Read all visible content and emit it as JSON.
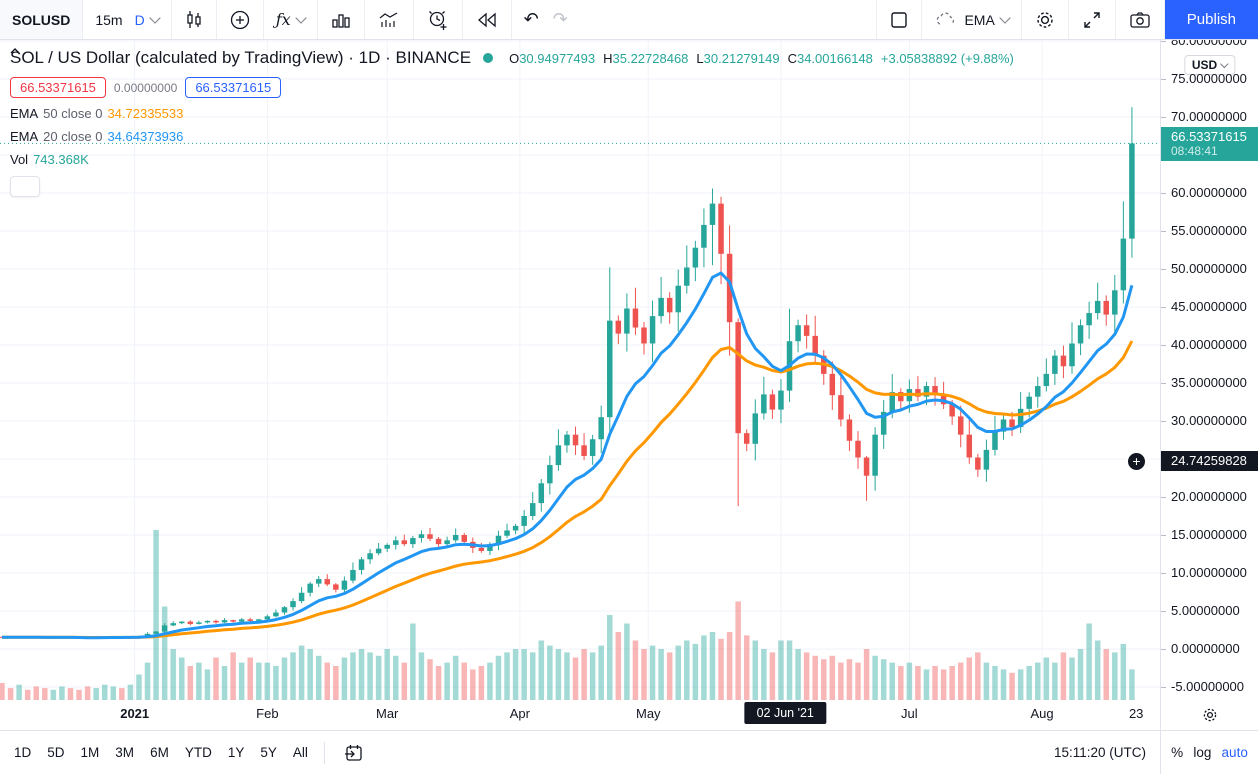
{
  "header": {
    "symbol": "SOLUSD",
    "interval": "15m",
    "timeframe": "D",
    "indicator_template_label": "EMA",
    "publish_label": "Publish",
    "fx_label": "ƒx"
  },
  "icons": {
    "undo": "↶",
    "redo": "↷",
    "plus": "+",
    "crosshair_plus": "⊕"
  },
  "legend": {
    "title": "SOL / US Dollar (calculated by TradingView) · 1D · BINANCE",
    "ohlc": {
      "o_key": "O",
      "o": "30.94977493",
      "h_key": "H",
      "h": "35.22728468",
      "l_key": "L",
      "l": "30.21279149",
      "c_key": "C",
      "c": "34.00166148",
      "change": "+3.05838892 (+9.88%)"
    },
    "sell_price": "66.53371615",
    "spread": "0.00000000",
    "buy_price": "66.53371615",
    "ema50_label": "EMA",
    "ema50_params": "50 close 0",
    "ema50_value": "34.72335533",
    "ema20_label": "EMA",
    "ema20_params": "20 close 0",
    "ema20_value": "34.64373936",
    "vol_label": "Vol",
    "vol_value": "743.368K"
  },
  "price_axis": {
    "currency": "USD",
    "ticks": [
      {
        "v": 80,
        "label": "80.00000000"
      },
      {
        "v": 75,
        "label": "75.00000000"
      },
      {
        "v": 70,
        "label": "70.00000000"
      },
      {
        "v": 60,
        "label": "60.00000000"
      },
      {
        "v": 55,
        "label": "55.00000000"
      },
      {
        "v": 50,
        "label": "50.00000000"
      },
      {
        "v": 45,
        "label": "45.00000000"
      },
      {
        "v": 40,
        "label": "40.00000000"
      },
      {
        "v": 35,
        "label": "35.00000000"
      },
      {
        "v": 30,
        "label": "30.00000000"
      },
      {
        "v": 20,
        "label": "20.00000000"
      },
      {
        "v": 15,
        "label": "15.00000000"
      },
      {
        "v": 10,
        "label": "10.00000000"
      },
      {
        "v": 5,
        "label": "5.00000000"
      },
      {
        "v": 0,
        "label": "0.00000000"
      },
      {
        "v": -5,
        "label": "-5.00000000"
      }
    ],
    "last_price_label": "66.53371615",
    "countdown": "08:48:41",
    "crosshair_label": "24.74259828"
  },
  "time_axis": {
    "labels": [
      {
        "label": "2021",
        "day": 31,
        "bold": true
      },
      {
        "label": "Feb",
        "day": 62
      },
      {
        "label": "Mar",
        "day": 90
      },
      {
        "label": "Apr",
        "day": 121
      },
      {
        "label": "May",
        "day": 151
      },
      {
        "label": "Jul",
        "day": 212
      },
      {
        "label": "Aug",
        "day": 243
      },
      {
        "label": "23",
        "day": 265
      }
    ],
    "crosshair_tooltip": {
      "label": "02 Jun '21",
      "day": 183
    }
  },
  "footer": {
    "ranges": [
      "1D",
      "5D",
      "1M",
      "3M",
      "6M",
      "YTD",
      "1Y",
      "5Y",
      "All"
    ],
    "clock": "15:11:20 (UTC)",
    "percent_label": "%",
    "log_label": "log",
    "auto_label": "auto"
  },
  "chart_data": {
    "type": "candlestick",
    "title": "SOL / US Dollar (calculated by TradingView)",
    "exchange": "BINANCE",
    "interval": "1D",
    "x_range": "Dec 2020 – 23 Aug 2021",
    "step_days_per_candle": 2,
    "ylim": [
      -6.7,
      80
    ],
    "grid": true,
    "last_price": 66.53371615,
    "crosshair_price": 24.74259828,
    "crosshair_day": 183,
    "closes": [
      1.55,
      1.5,
      1.6,
      1.55,
      1.5,
      1.45,
      1.5,
      1.55,
      1.5,
      1.45,
      1.4,
      1.5,
      1.55,
      1.6,
      1.5,
      1.55,
      1.7,
      2.0,
      2.3,
      3.1,
      3.4,
      3.6,
      3.3,
      3.5,
      3.7,
      3.5,
      3.8,
      3.6,
      3.9,
      3.7,
      3.9,
      4.3,
      4.8,
      5.5,
      6.3,
      7.4,
      8.6,
      9.2,
      8.5,
      7.8,
      9.0,
      10.4,
      11.8,
      12.6,
      13.2,
      13.7,
      14.3,
      13.8,
      14.6,
      15.1,
      14.5,
      13.8,
      14.3,
      15.0,
      14.1,
      13.3,
      12.9,
      13.8,
      14.9,
      15.6,
      16.2,
      17.5,
      19.2,
      21.8,
      24.2,
      26.8,
      28.2,
      26.8,
      25.4,
      27.6,
      30.5,
      43.2,
      41.5,
      44.8,
      42.3,
      40.2,
      43.8,
      46.2,
      44.3,
      47.8,
      50.2,
      52.8,
      55.8,
      58.6,
      52.0,
      43.0,
      28.4,
      27.0,
      31.0,
      33.5,
      31.5,
      34.0,
      40.5,
      42.6,
      41.2,
      38.6,
      36.2,
      33.4,
      30.2,
      27.4,
      25.2,
      22.8,
      28.2,
      31.2,
      33.8,
      32.6,
      34.2,
      33.2,
      34.6,
      33.4,
      32.2,
      30.6,
      28.2,
      25.2,
      23.6,
      26.2,
      28.6,
      30.2,
      29.2,
      31.6,
      33.2,
      34.6,
      36.2,
      38.6,
      37.2,
      40.2,
      42.6,
      44.2,
      45.8,
      44.0,
      47.2,
      54.0,
      66.53
    ],
    "volumes": [
      0.1,
      0.07,
      0.09,
      0.06,
      0.08,
      0.07,
      0.06,
      0.08,
      0.07,
      0.06,
      0.08,
      0.07,
      0.09,
      0.08,
      0.07,
      0.09,
      0.15,
      0.22,
      1.0,
      0.55,
      0.3,
      0.25,
      0.2,
      0.22,
      0.18,
      0.25,
      0.2,
      0.28,
      0.22,
      0.25,
      0.22,
      0.22,
      0.2,
      0.25,
      0.28,
      0.32,
      0.3,
      0.26,
      0.22,
      0.2,
      0.25,
      0.28,
      0.3,
      0.28,
      0.26,
      0.3,
      0.26,
      0.22,
      0.45,
      0.28,
      0.24,
      0.2,
      0.22,
      0.26,
      0.22,
      0.18,
      0.2,
      0.22,
      0.26,
      0.28,
      0.3,
      0.3,
      0.28,
      0.35,
      0.32,
      0.3,
      0.28,
      0.25,
      0.3,
      0.28,
      0.32,
      0.5,
      0.4,
      0.45,
      0.35,
      0.3,
      0.32,
      0.3,
      0.28,
      0.32,
      0.35,
      0.33,
      0.38,
      0.4,
      0.36,
      0.4,
      0.58,
      0.38,
      0.35,
      0.3,
      0.28,
      0.35,
      0.35,
      0.3,
      0.28,
      0.26,
      0.24,
      0.26,
      0.22,
      0.24,
      0.22,
      0.3,
      0.26,
      0.24,
      0.22,
      0.2,
      0.22,
      0.2,
      0.18,
      0.2,
      0.18,
      0.2,
      0.22,
      0.25,
      0.28,
      0.22,
      0.2,
      0.18,
      0.16,
      0.18,
      0.2,
      0.22,
      0.25,
      0.22,
      0.28,
      0.25,
      0.3,
      0.45,
      0.35,
      0.3,
      0.28,
      0.33,
      0.18
    ],
    "wick_overrides": [
      {
        "i": 83,
        "hi": 60.6,
        "lo": 50.5
      },
      {
        "i": 84,
        "hi": 59.5,
        "lo": 48.0
      },
      {
        "i": 86,
        "hi": 43.5,
        "lo": 18.8
      },
      {
        "i": 101,
        "hi": 25.4,
        "lo": 19.5
      },
      {
        "i": 132,
        "hi": 71.3,
        "lo": 51.5
      }
    ],
    "emas": [
      {
        "name": "EMA 50",
        "period_days": 50,
        "value_at_cursor": 34.72335533
      },
      {
        "name": "EMA 20",
        "period_days": 20,
        "value_at_cursor": 34.64373936
      }
    ],
    "grid_month_days": [
      31,
      62,
      90,
      121,
      151,
      182,
      212,
      243
    ],
    "colors": {
      "up": "#26a69a",
      "down": "#ef5350",
      "ema20": "#2196f3",
      "ema50": "#ff9800",
      "grid": "#f0f3fa",
      "last_line": "#26a69a",
      "accent": "#2962ff",
      "sell": "#f23645",
      "text": "#131722",
      "muted": "#787b86"
    }
  }
}
